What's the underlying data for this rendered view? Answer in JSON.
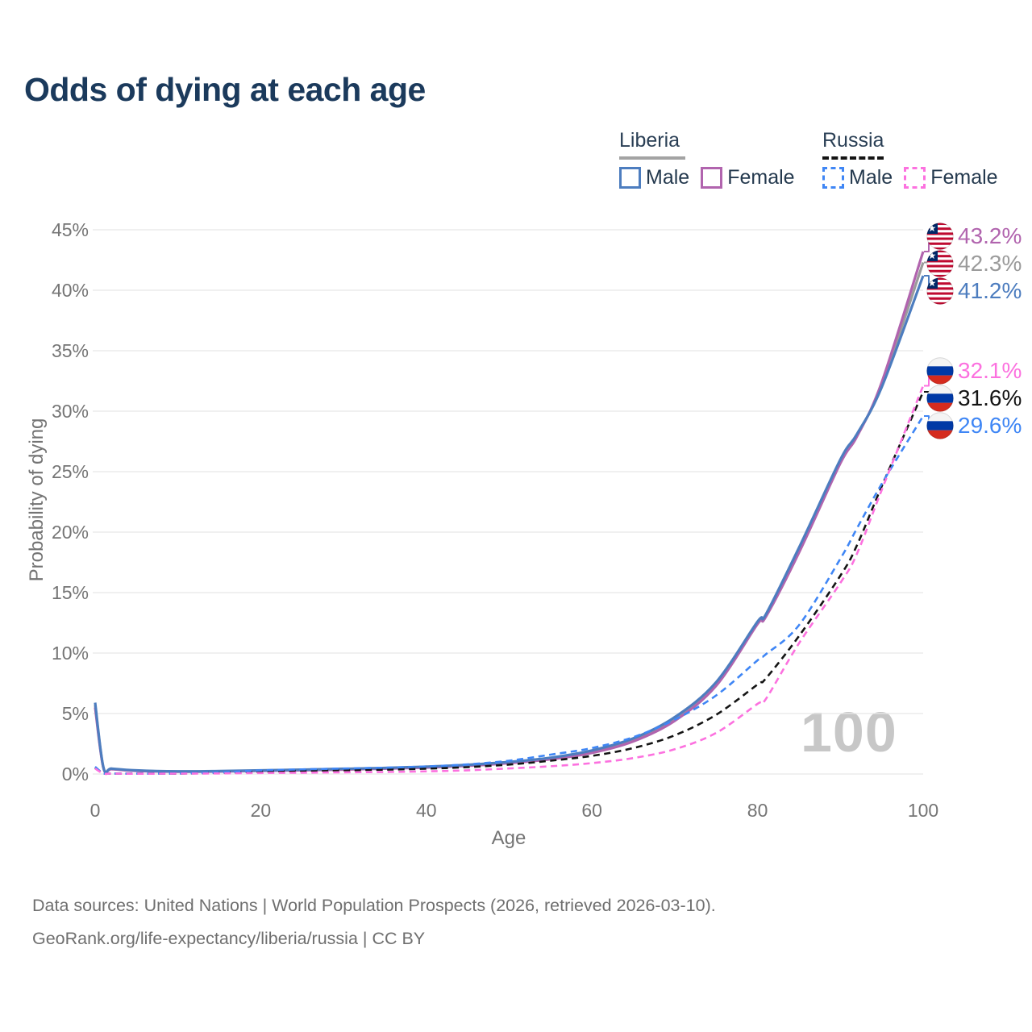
{
  "title": "Odds of dying at each age",
  "watermark": "100",
  "legend": {
    "groups": [
      {
        "label": "Liberia",
        "line_style": "solid",
        "line_color": "#a3a3a3",
        "items": [
          {
            "label": "Male",
            "color": "#4d7dbf",
            "dashed": false
          },
          {
            "label": "Female",
            "color": "#b164ae",
            "dashed": false
          }
        ]
      },
      {
        "label": "Russia",
        "line_style": "dashed",
        "line_color": "#141414",
        "items": [
          {
            "label": "Male",
            "color": "#3f86f5",
            "dashed": true
          },
          {
            "label": "Female",
            "color": "#fc71df",
            "dashed": true
          }
        ]
      }
    ]
  },
  "chart_data": {
    "type": "line",
    "title": "Odds of dying at each age",
    "xlabel": "Age",
    "ylabel": "Probability of dying",
    "xlim": [
      0,
      100
    ],
    "ylim": [
      0,
      45
    ],
    "grid": "horizontal",
    "xticks": [
      0,
      20,
      40,
      60,
      80,
      100
    ],
    "yticks": [
      "0%",
      "5%",
      "10%",
      "15%",
      "20%",
      "25%",
      "30%",
      "35%",
      "40%",
      "45%"
    ],
    "ytick_values": [
      0,
      5,
      10,
      15,
      20,
      25,
      30,
      35,
      40,
      45
    ],
    "x": [
      0,
      1,
      2,
      5,
      10,
      15,
      20,
      25,
      30,
      35,
      40,
      45,
      50,
      55,
      60,
      65,
      70,
      75,
      80,
      81,
      85,
      90,
      92,
      95,
      100
    ],
    "series": [
      {
        "id": "liberia-both",
        "name": "Liberia Both sexes",
        "country": "Liberia",
        "sex": "Both",
        "color": "#9b9b9b",
        "dashed": false,
        "end_label": "42.3%",
        "end_value": 42.3,
        "values": [
          5.7,
          0.52,
          0.42,
          0.28,
          0.2,
          0.22,
          0.28,
          0.34,
          0.4,
          0.47,
          0.57,
          0.72,
          0.95,
          1.28,
          1.85,
          2.82,
          4.55,
          7.45,
          12.5,
          13.1,
          18.5,
          25.9,
          28.0,
          32.2,
          42.3
        ]
      },
      {
        "id": "liberia-female",
        "name": "Liberia Female",
        "country": "Liberia",
        "sex": "Female",
        "color": "#b164ae",
        "dashed": false,
        "end_label": "43.2%",
        "end_value": 43.2,
        "values": [
          5.5,
          0.5,
          0.4,
          0.26,
          0.19,
          0.21,
          0.26,
          0.31,
          0.37,
          0.44,
          0.53,
          0.68,
          0.9,
          1.22,
          1.75,
          2.7,
          4.4,
          7.3,
          12.4,
          13.0,
          18.3,
          25.7,
          27.9,
          32.4,
          43.2
        ]
      },
      {
        "id": "liberia-male",
        "name": "Liberia Male",
        "country": "Liberia",
        "sex": "Male",
        "color": "#4d7dbf",
        "dashed": false,
        "end_label": "41.2%",
        "end_value": 41.2,
        "values": [
          5.9,
          0.55,
          0.45,
          0.3,
          0.22,
          0.24,
          0.3,
          0.36,
          0.43,
          0.5,
          0.61,
          0.76,
          1.0,
          1.35,
          1.95,
          2.95,
          4.7,
          7.6,
          12.6,
          13.2,
          18.7,
          26.0,
          28.1,
          32.0,
          41.2
        ]
      },
      {
        "id": "russia-both",
        "name": "Russia Both sexes",
        "country": "Russia",
        "sex": "Both",
        "color": "#141414",
        "dashed": true,
        "end_label": "31.6%",
        "end_value": 31.6,
        "values": [
          0.52,
          0.055,
          0.035,
          0.025,
          0.035,
          0.09,
          0.2,
          0.26,
          0.31,
          0.36,
          0.44,
          0.57,
          0.78,
          1.1,
          1.5,
          2.15,
          3.2,
          4.9,
          7.4,
          7.9,
          11.4,
          16.4,
          18.9,
          23.8,
          31.6
        ]
      },
      {
        "id": "russia-male",
        "name": "Russia Male",
        "country": "Russia",
        "sex": "Male",
        "color": "#3f86f5",
        "dashed": true,
        "end_label": "29.6%",
        "end_value": 29.6,
        "values": [
          0.6,
          0.06,
          0.04,
          0.03,
          0.045,
          0.12,
          0.3,
          0.38,
          0.45,
          0.52,
          0.62,
          0.8,
          1.1,
          1.6,
          2.15,
          3.05,
          4.5,
          6.5,
          9.4,
          9.9,
          12.3,
          17.8,
          20.3,
          24.0,
          29.6
        ]
      },
      {
        "id": "russia-female",
        "name": "Russia Female",
        "country": "Russia",
        "sex": "Female",
        "color": "#fc71df",
        "dashed": true,
        "end_label": "32.1%",
        "end_value": 32.1,
        "values": [
          0.45,
          0.05,
          0.03,
          0.02,
          0.03,
          0.05,
          0.08,
          0.11,
          0.14,
          0.17,
          0.22,
          0.31,
          0.46,
          0.64,
          0.9,
          1.32,
          2.05,
          3.4,
          5.8,
          6.2,
          10.8,
          15.8,
          18.2,
          23.5,
          32.1
        ]
      }
    ]
  },
  "footer": {
    "line1": "Data sources: United Nations | World Population Prospects (2026, retrieved 2026-03-10).",
    "line2": "GeoRank.org/life-expectancy/liberia/russia | CC BY"
  }
}
